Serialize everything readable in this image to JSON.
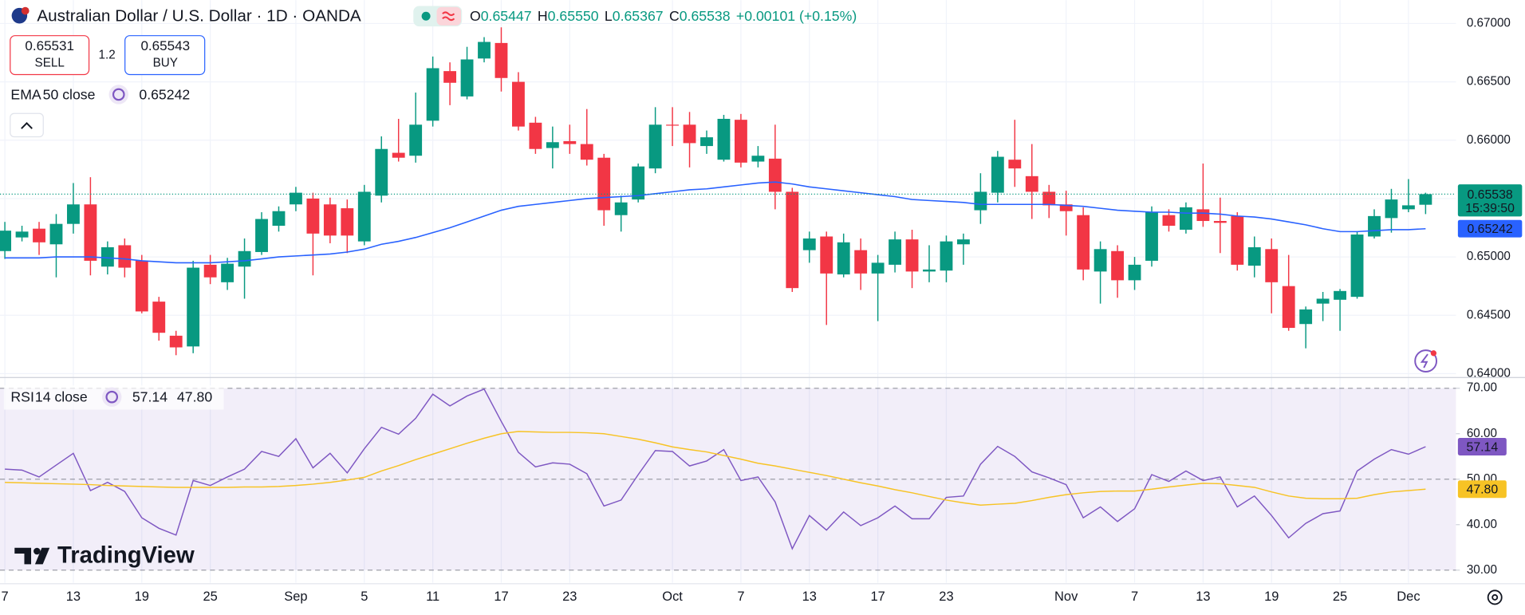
{
  "header": {
    "title": "Australian Dollar / U.S. Dollar · 1D · OANDA",
    "open_label": "O",
    "open": "0.65447",
    "high_label": "H",
    "high": "0.65550",
    "low_label": "L",
    "low": "0.65367",
    "close_label": "C",
    "close": "0.65538",
    "change": "+0.00101 (+0.15%)"
  },
  "trade": {
    "sell_price": "0.65531",
    "sell_label": "SELL",
    "spread": "1.2",
    "buy_price": "0.65543",
    "buy_label": "BUY"
  },
  "countdown": "15:39:50",
  "branding": "TradingView",
  "chart_data": [
    {
      "type": "candlestick",
      "categories": [
        "7",
        null,
        null,
        null,
        "13",
        null,
        null,
        null,
        "19",
        null,
        null,
        null,
        "25",
        null,
        null,
        null,
        null,
        "Sep",
        null,
        null,
        null,
        "5",
        null,
        null,
        null,
        "11",
        null,
        null,
        null,
        "17",
        null,
        null,
        null,
        "23",
        null,
        null,
        null,
        null,
        null,
        "Oct",
        null,
        null,
        null,
        "7",
        null,
        null,
        null,
        "13",
        null,
        null,
        null,
        "17",
        null,
        null,
        null,
        "23",
        null,
        null,
        null,
        null,
        null,
        null,
        "Nov",
        null,
        null,
        null,
        "7",
        null,
        null,
        null,
        "13",
        null,
        null,
        null,
        "19",
        null,
        null,
        null,
        "25",
        null,
        null,
        null,
        "Dec",
        null
      ],
      "open": [
        0.6505,
        0.65167,
        0.65242,
        0.65108,
        0.65283,
        0.6545,
        0.64917,
        0.651,
        0.64967,
        0.64617,
        0.64325,
        0.64233,
        0.64933,
        0.64783,
        0.64917,
        0.65042,
        0.65267,
        0.6545,
        0.655,
        0.6545,
        0.65417,
        0.65133,
        0.65525,
        0.65892,
        0.65867,
        0.66167,
        0.66592,
        0.66375,
        0.667,
        0.66833,
        0.665,
        0.6615,
        0.65933,
        0.65992,
        0.65967,
        0.6585,
        0.65358,
        0.65492,
        0.65758,
        0.66133,
        0.66133,
        0.6595,
        0.65833,
        0.66175,
        0.65817,
        0.65842,
        0.65558,
        0.65058,
        0.65175,
        0.6485,
        0.65058,
        0.64858,
        0.64933,
        0.6515,
        0.64875,
        0.64883,
        0.65108,
        0.654,
        0.6555,
        0.65833,
        0.65692,
        0.65558,
        0.6545,
        0.65358,
        0.64875,
        0.6505,
        0.648,
        0.64967,
        0.65358,
        0.65233,
        0.65408,
        0.65308,
        0.6535,
        0.64925,
        0.65067,
        0.6475,
        0.64425,
        0.646,
        0.64633,
        0.64658,
        0.65175,
        0.65333,
        0.65408,
        0.65447
      ],
      "high": [
        0.653,
        0.65267,
        0.653,
        0.65367,
        0.65633,
        0.65683,
        0.65133,
        0.65158,
        0.65017,
        0.64658,
        0.64367,
        0.64967,
        0.65017,
        0.64992,
        0.65158,
        0.65383,
        0.65433,
        0.656,
        0.6555,
        0.65508,
        0.65492,
        0.65617,
        0.66033,
        0.66183,
        0.66408,
        0.66717,
        0.66667,
        0.668,
        0.66883,
        0.66967,
        0.66583,
        0.662,
        0.66117,
        0.66133,
        0.66267,
        0.65883,
        0.65525,
        0.658,
        0.66283,
        0.66283,
        0.66242,
        0.66083,
        0.66217,
        0.66225,
        0.6595,
        0.66133,
        0.65592,
        0.65217,
        0.65217,
        0.652,
        0.65158,
        0.65017,
        0.65217,
        0.65233,
        0.651,
        0.65183,
        0.652,
        0.65717,
        0.65908,
        0.66175,
        0.65967,
        0.65617,
        0.65567,
        0.65425,
        0.65133,
        0.651,
        0.65,
        0.65433,
        0.65408,
        0.65467,
        0.658,
        0.65508,
        0.65383,
        0.65175,
        0.65158,
        0.65017,
        0.64575,
        0.647,
        0.64725,
        0.65217,
        0.65408,
        0.65583,
        0.65667,
        0.6555
      ],
      "low": [
        0.64983,
        0.65133,
        0.65017,
        0.64825,
        0.652,
        0.64842,
        0.6485,
        0.64825,
        0.64517,
        0.64283,
        0.64158,
        0.64175,
        0.64767,
        0.64717,
        0.64642,
        0.65017,
        0.65217,
        0.65392,
        0.64842,
        0.65117,
        0.65033,
        0.651,
        0.65467,
        0.65817,
        0.65808,
        0.66117,
        0.663,
        0.6635,
        0.66667,
        0.66417,
        0.66083,
        0.65883,
        0.65758,
        0.65883,
        0.65783,
        0.65267,
        0.65217,
        0.65467,
        0.65717,
        0.6595,
        0.65767,
        0.65883,
        0.65817,
        0.65767,
        0.65767,
        0.65408,
        0.647,
        0.6495,
        0.64417,
        0.64825,
        0.64717,
        0.6445,
        0.64867,
        0.64733,
        0.64783,
        0.64783,
        0.64933,
        0.65283,
        0.65467,
        0.656,
        0.65325,
        0.65333,
        0.65183,
        0.648,
        0.646,
        0.6465,
        0.64717,
        0.64917,
        0.65217,
        0.652,
        0.65258,
        0.65033,
        0.64883,
        0.64825,
        0.64517,
        0.64367,
        0.64217,
        0.6445,
        0.64367,
        0.64642,
        0.65158,
        0.65208,
        0.65383,
        0.65367
      ],
      "close": [
        0.65225,
        0.65217,
        0.65125,
        0.65283,
        0.6545,
        0.64967,
        0.65083,
        0.64908,
        0.64533,
        0.6435,
        0.64225,
        0.64908,
        0.64825,
        0.64942,
        0.6505,
        0.65325,
        0.65392,
        0.6555,
        0.652,
        0.65183,
        0.65183,
        0.65558,
        0.65925,
        0.6585,
        0.66133,
        0.66617,
        0.66492,
        0.66692,
        0.66842,
        0.66533,
        0.66117,
        0.65925,
        0.65983,
        0.65967,
        0.65833,
        0.654,
        0.65467,
        0.65775,
        0.66133,
        0.66125,
        0.65975,
        0.66025,
        0.66183,
        0.65808,
        0.65867,
        0.65558,
        0.64733,
        0.65158,
        0.64858,
        0.65125,
        0.64858,
        0.6495,
        0.6515,
        0.64875,
        0.64892,
        0.65133,
        0.6515,
        0.65558,
        0.65858,
        0.65758,
        0.65558,
        0.65442,
        0.65392,
        0.64892,
        0.65067,
        0.648,
        0.64933,
        0.65383,
        0.65267,
        0.65425,
        0.65308,
        0.65292,
        0.64933,
        0.65083,
        0.64783,
        0.64392,
        0.6455,
        0.64642,
        0.64708,
        0.65192,
        0.6535,
        0.65492,
        0.65442,
        0.65538
      ],
      "up_color": "#089981",
      "down_color": "#f23645",
      "series": [
        {
          "name": "EMA",
          "params": "50 close",
          "color": "#2962ff",
          "values": [
            0.64992,
            0.64992,
            0.64992,
            0.65,
            0.65,
            0.65,
            0.64992,
            0.64983,
            0.64967,
            0.64958,
            0.6495,
            0.6495,
            0.6495,
            0.64958,
            0.64967,
            0.64983,
            0.65,
            0.65008,
            0.65017,
            0.65025,
            0.65042,
            0.65067,
            0.65108,
            0.65133,
            0.65167,
            0.65208,
            0.6525,
            0.653,
            0.6535,
            0.654,
            0.65433,
            0.6545,
            0.65467,
            0.65483,
            0.655,
            0.65508,
            0.65517,
            0.65525,
            0.65542,
            0.65558,
            0.65575,
            0.65583,
            0.656,
            0.65617,
            0.65633,
            0.65642,
            0.65625,
            0.656,
            0.65583,
            0.65567,
            0.6555,
            0.65533,
            0.65517,
            0.65492,
            0.65483,
            0.65475,
            0.65467,
            0.6545,
            0.6545,
            0.6545,
            0.6545,
            0.6545,
            0.65442,
            0.65433,
            0.65417,
            0.654,
            0.65392,
            0.65383,
            0.65383,
            0.65375,
            0.65375,
            0.65367,
            0.6535,
            0.65342,
            0.65325,
            0.653,
            0.65275,
            0.65242,
            0.65217,
            0.65217,
            0.65225,
            0.65233,
            0.65233,
            0.65242
          ]
        }
      ],
      "ylim": [
        0.63975,
        0.672
      ],
      "yticks": [
        {
          "value": 0.64,
          "label": "0.64000"
        },
        {
          "value": 0.645,
          "label": "0.64500"
        },
        {
          "value": 0.65,
          "label": "0.65000"
        },
        {
          "value": 0.655,
          "label": "0.65500"
        },
        {
          "value": 0.66,
          "label": "0.66000"
        },
        {
          "value": 0.665,
          "label": "0.66500"
        },
        {
          "value": 0.67,
          "label": "0.67000"
        }
      ],
      "grid": true
    },
    {
      "type": "line",
      "series": [
        {
          "name": "RSI",
          "params": "14 close",
          "color": "#7e57c2",
          "values": [
            52.2,
            52,
            50.5,
            53.1,
            55.7,
            47.5,
            49.3,
            47.3,
            41.5,
            39.2,
            37.7,
            49.7,
            48.6,
            50.5,
            52.2,
            56.1,
            55,
            58.9,
            52.5,
            55.7,
            51.4,
            56.7,
            61.4,
            59.9,
            63.4,
            68.7,
            66.1,
            68.3,
            69.8,
            62.7,
            55.9,
            52.7,
            53.6,
            53.3,
            51.2,
            44.1,
            45.4,
            51,
            56.3,
            56.1,
            52.9,
            54,
            56.5,
            49.7,
            50.5,
            45,
            34.7,
            42,
            38.8,
            42.8,
            39.8,
            41.5,
            44.1,
            41.3,
            41.3,
            46,
            46.3,
            53.3,
            57.2,
            55,
            51.6,
            50.3,
            48.8,
            41.5,
            43.9,
            40.7,
            43.5,
            51,
            49.5,
            51.8,
            49.7,
            50.5,
            43.9,
            46.3,
            42,
            37.1,
            40.3,
            42.4,
            43,
            51.8,
            54.4,
            56.5,
            55.5,
            57.14
          ]
        },
        {
          "color": "#f7c325",
          "values": [
            49.3,
            49.2,
            49.1,
            49,
            48.9,
            48.8,
            48.6,
            48.5,
            48.4,
            48.3,
            48.2,
            48.2,
            48.2,
            48.2,
            48.3,
            48.3,
            48.4,
            48.6,
            48.9,
            49.3,
            49.8,
            50.4,
            51.8,
            53,
            54.3,
            55.5,
            56.7,
            57.9,
            59,
            60,
            60.5,
            60.4,
            60.3,
            60.3,
            60.2,
            60,
            59.4,
            58.8,
            58,
            57.1,
            56.5,
            56,
            55.2,
            54.4,
            53.5,
            52.9,
            52.2,
            51.5,
            50.8,
            50,
            49.2,
            48.5,
            47.7,
            47,
            46.2,
            45.4,
            44.8,
            44.3,
            44.5,
            44.7,
            45.3,
            46,
            46.6,
            47,
            47.3,
            47.4,
            47.4,
            47.8,
            48.3,
            48.7,
            49.1,
            49,
            48.6,
            48.2,
            47.2,
            46.3,
            45.8,
            45.7,
            45.7,
            45.8,
            46.6,
            47.2,
            47.5,
            47.8
          ],
          "value_labels": [
            null,
            null,
            null,
            null,
            null,
            null,
            null,
            null,
            null,
            null,
            null,
            null,
            null,
            null,
            null,
            null,
            null,
            null,
            null,
            null,
            null,
            null,
            null,
            null,
            null,
            null,
            null,
            null,
            null,
            null,
            null,
            null,
            null,
            null,
            null,
            null,
            null,
            null,
            null,
            null,
            null,
            null,
            null,
            null,
            null,
            null,
            null,
            null,
            null,
            null,
            null,
            null,
            null,
            null,
            null,
            null,
            null,
            null,
            null,
            null,
            null,
            null,
            null,
            null,
            null,
            null,
            null,
            null,
            null,
            null,
            null,
            null,
            null,
            null,
            null,
            null,
            null,
            null,
            null,
            null,
            null,
            null,
            null,
            "47.80"
          ]
        }
      ],
      "levels": [
        70,
        50,
        30
      ],
      "ylim": [
        27.22,
        72.14
      ],
      "yticks": [
        {
          "value": 30,
          "label": "30.00"
        },
        {
          "value": 40,
          "label": "40.00"
        },
        {
          "value": 50,
          "label": "50.00"
        },
        {
          "value": 60,
          "label": "60.00"
        },
        {
          "value": 70,
          "label": "70.00"
        }
      ]
    }
  ]
}
